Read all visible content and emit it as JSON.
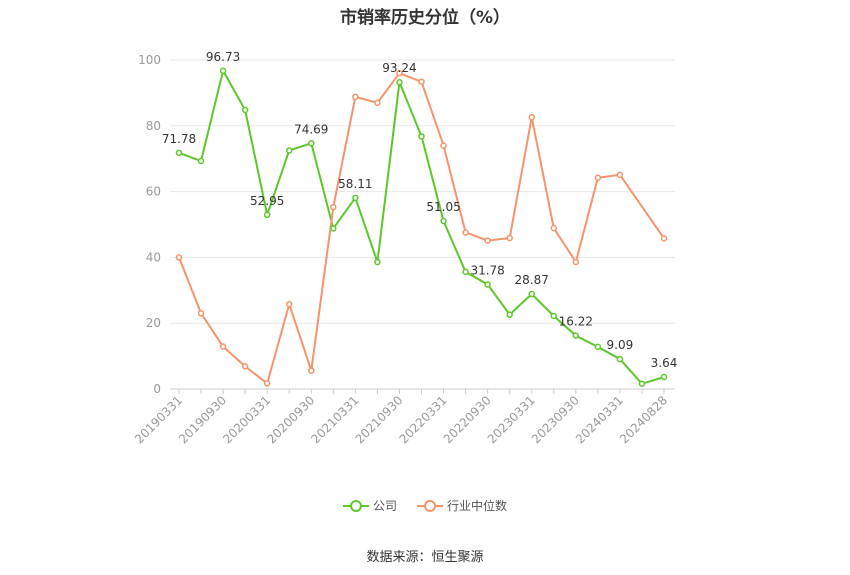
{
  "chart_data": {
    "type": "line",
    "title": "市销率历史分位（%）",
    "ylim": [
      0,
      100
    ],
    "yticks": [
      0,
      20,
      40,
      60,
      80,
      100
    ],
    "x": [
      "20190331",
      "20190630",
      "20190930",
      "20191231",
      "20200331",
      "20200630",
      "20200930",
      "20201231",
      "20210331",
      "20210630",
      "20210930",
      "20211231",
      "20220331",
      "20220630",
      "20220930",
      "20221231",
      "20230331",
      "20230630",
      "20230930",
      "20231231",
      "20240331",
      "20240630",
      "20240828"
    ],
    "xtick_labels": [
      "20190331",
      "20190930",
      "20200331",
      "20200930",
      "20210331",
      "20210930",
      "20220331",
      "20220930",
      "20230331",
      "20230930",
      "20240331",
      "20240828"
    ],
    "series": [
      {
        "name": "公司",
        "color": "#5cc72a",
        "values": [
          71.78,
          69.3,
          96.73,
          84.8,
          52.95,
          72.5,
          74.69,
          48.8,
          58.11,
          38.6,
          93.24,
          76.8,
          51.05,
          35.6,
          31.78,
          22.6,
          28.87,
          22.2,
          16.22,
          12.8,
          9.09,
          1.6,
          3.64
        ],
        "labels": [
          "71.78",
          "",
          "96.73",
          "",
          "52.95",
          "",
          "74.69",
          "",
          "58.11",
          "",
          "93.24",
          "",
          "51.05",
          "",
          "31.78",
          "",
          "28.87",
          "",
          "16.22",
          "",
          "9.09",
          "",
          "3.64"
        ]
      },
      {
        "name": "行业中位数",
        "color": "#f5946a",
        "values": [
          40.0,
          23.0,
          12.9,
          6.9,
          1.7,
          25.8,
          5.6,
          55.3,
          88.8,
          87.0,
          96.0,
          93.4,
          74.0,
          47.6,
          45.1,
          45.9,
          82.6,
          48.9,
          38.6,
          64.2,
          65.1,
          null,
          45.8
        ]
      }
    ],
    "grid": true,
    "legend": "bottom-center"
  },
  "source": "数据来源：恒生聚源"
}
